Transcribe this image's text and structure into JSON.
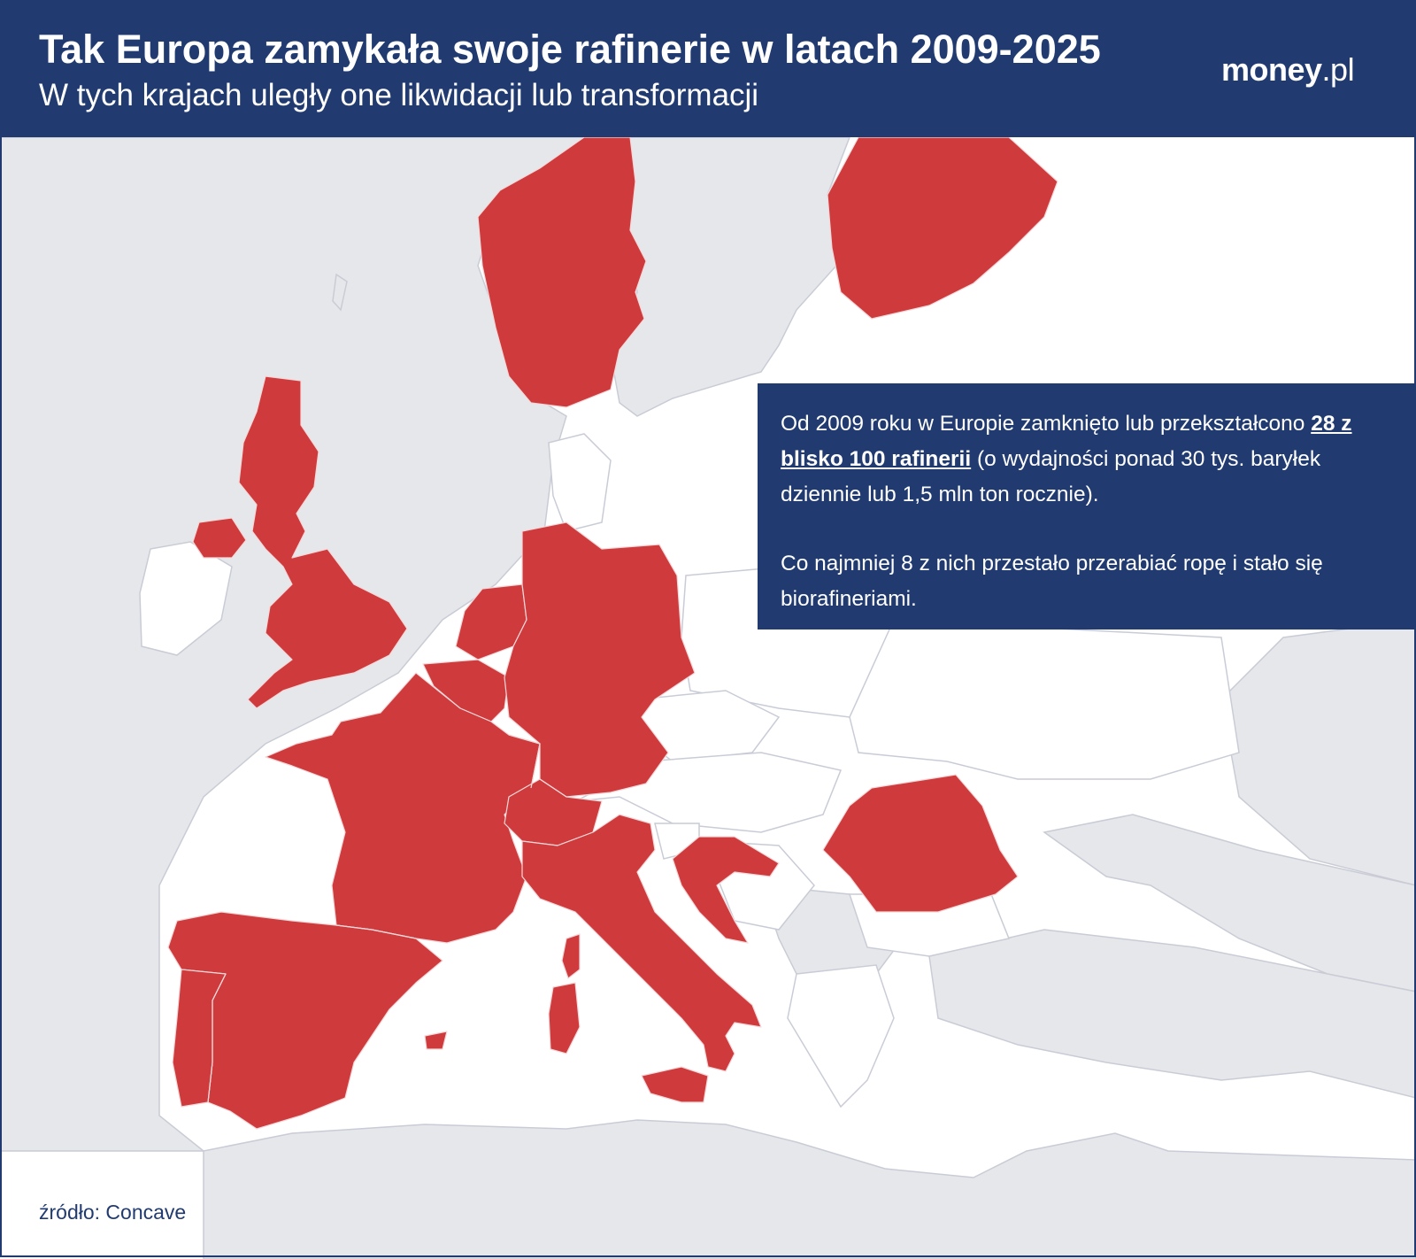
{
  "header": {
    "title": "Tak Europa zamykała swoje rafinerie w latach 2009-2025",
    "subtitle": "W tych krajach uległy one likwidacji lub transformacji",
    "logo_main": "money",
    "logo_suffix": ".pl"
  },
  "info": {
    "p1_before": "Od 2009 roku w Europie zamknięto lub przekształcono",
    "p1_highlight": "28 z blisko 100 rafinerii",
    "p1_after": "(o wydajności ponad 30 tys. baryłek dziennie lub 1,5 mln ton rocznie).",
    "p2": "Co najmniej 8 z nich przestało przerabiać ropę i stało się biorafineriami."
  },
  "source": "źródło: Concave",
  "map": {
    "colors": {
      "highlight": "#cf3a3d",
      "eu_other": "#ffffff",
      "non_eu": "#e6e7ea",
      "sea": "#ffffff",
      "border": "#c9ccd6",
      "header": "#213b70"
    },
    "highlighted_countries": [
      "Norway",
      "Finland",
      "United Kingdom",
      "Northern Ireland",
      "Netherlands",
      "Belgium",
      "Germany",
      "France",
      "Switzerland",
      "Italy",
      "Spain",
      "Portugal",
      "Croatia",
      "Romania"
    ]
  }
}
